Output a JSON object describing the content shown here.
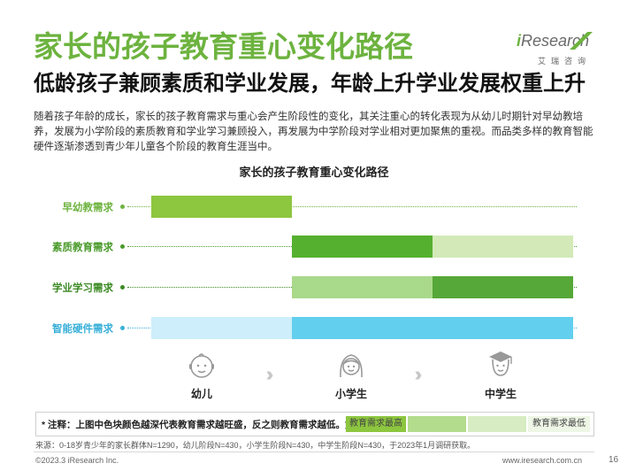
{
  "header": {
    "title": "家长的孩子教育重心变化路径",
    "subtitle": "低龄孩子兼顾素质和学业发展，年龄上升学业发展权重上升"
  },
  "logo": {
    "prefix": "i",
    "word": "Research",
    "sub": "艾瑞咨询",
    "color": "#6db33f"
  },
  "intro": "随着孩子年龄的成长，家长的孩子教育需求与重心会产生阶段性的变化，其关注重心的转化表现为从幼儿时期针对早幼教培养，发展为小学阶段的素质教育和学业学习兼顾投入，再发展为中学阶段对学业相对更加聚焦的重视。而品类多样的教育智能硬件逐渐渗透到青少年儿童各个阶段的教育生涯当中。",
  "chart": {
    "title": "家长的孩子教育重心变化路径",
    "rows": [
      {
        "label": "早幼教需求",
        "label_color": "#6db33f",
        "dot_color": "#6db33f",
        "levels": [
          "#8dc63f",
          null,
          null
        ]
      },
      {
        "label": "素质教育需求",
        "label_color": "#4a9a2a",
        "dot_color": "#4a9a2a",
        "levels": [
          null,
          "#56b030",
          "#d3eab8"
        ]
      },
      {
        "label": "学业学习需求",
        "label_color": "#3d8a25",
        "dot_color": "#3d8a25",
        "levels": [
          null,
          "#a9d98b",
          "#56a838"
        ]
      },
      {
        "label": "智能硬件需求",
        "label_color": "#3ab0d8",
        "dot_color": "#3ab0d8",
        "levels": [
          "#cdeefa",
          "#63cfee",
          "#63cfee"
        ]
      }
    ],
    "stages": [
      {
        "label": "幼儿",
        "icon": "baby-face-icon"
      },
      {
        "label": "小学生",
        "icon": "girl-face-icon"
      },
      {
        "label": "中学生",
        "icon": "graduate-face-icon"
      }
    ]
  },
  "note": {
    "text": "* 注释：上图中色块颜色越深代表教育需求越旺盛，反之则教育需求越低。如：",
    "high_label": "教育需求最高",
    "low_label": "教育需求最低",
    "scale_colors": [
      "#8dc63f",
      "#b3dc8c",
      "#d7ecc2",
      "#eef6e6"
    ]
  },
  "source": "来源：0-18岁青少年的家长群体N=1290，幼儿阶段N=430，小学生阶段N=430，中学生阶段N=430，于2023年1月调研获取。",
  "footer": {
    "copyright": "©2023.3 iResearch Inc.",
    "url": "www.iresearch.com.cn",
    "page": "16"
  }
}
